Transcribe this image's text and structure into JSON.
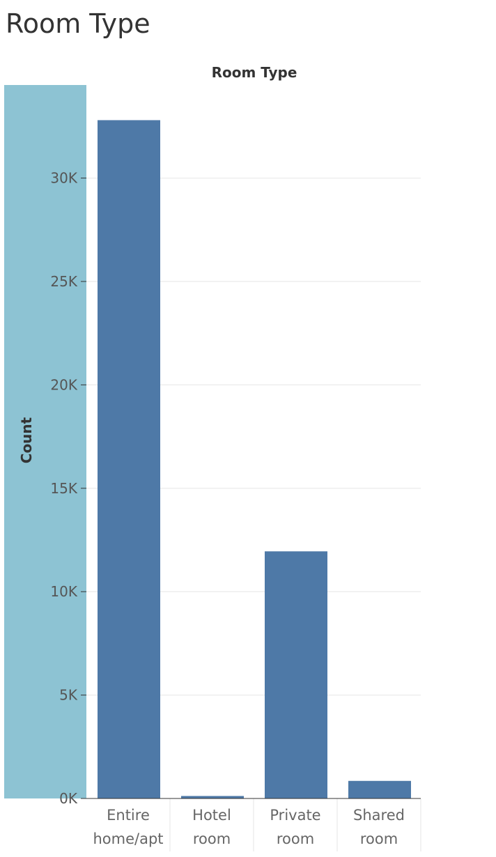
{
  "sheet": {
    "title": "Room Type"
  },
  "chart_data": {
    "type": "bar",
    "column_header": "Room Type",
    "ylabel": "Count",
    "ylim": [
      0,
      34500
    ],
    "yticks": [
      0,
      5000,
      10000,
      15000,
      20000,
      25000,
      30000
    ],
    "ytick_labels": [
      "0K",
      "5K",
      "10K",
      "15K",
      "20K",
      "25K",
      "30K"
    ],
    "categories": [
      [
        "Entire",
        "home/apt"
      ],
      [
        "Hotel",
        "room"
      ],
      [
        "Private",
        "room"
      ],
      [
        "Shared",
        "room"
      ]
    ],
    "values": [
      32800,
      120,
      11950,
      850
    ],
    "grid": "horizontal",
    "colors": {
      "bar": "#4e79a7",
      "axis_panel": "#8dc3d3",
      "gridline": "#eeeeee",
      "axis_line": "#333333",
      "divider": "#e6e6e6"
    }
  }
}
